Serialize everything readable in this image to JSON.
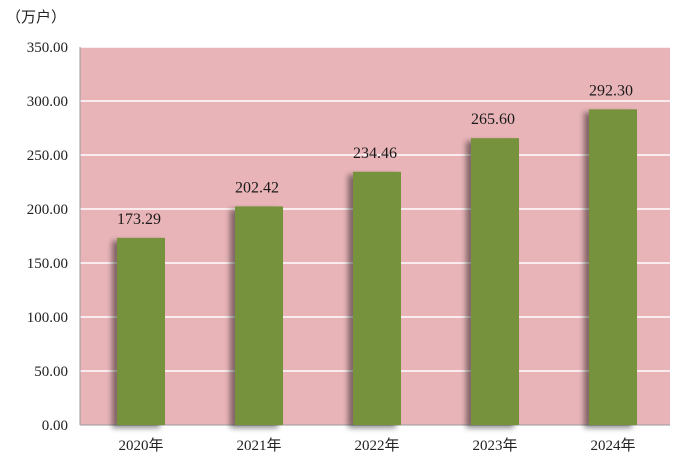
{
  "chart_data": {
    "type": "bar",
    "title": "",
    "xlabel": "",
    "ylabel": "",
    "unit": "（万户）",
    "categories": [
      "2020年",
      "2021年",
      "2022年",
      "2023年",
      "2024年"
    ],
    "values": [
      173.29,
      202.42,
      234.46,
      265.6,
      292.3
    ],
    "value_labels": [
      "173.29",
      "202.42",
      "234.46",
      "265.60",
      "292.30"
    ],
    "ylim": [
      0,
      350
    ],
    "yticks": [
      "0.00",
      "50.00",
      "100.00",
      "150.00",
      "200.00",
      "250.00",
      "300.00",
      "350.00"
    ],
    "grid": true,
    "legend": "none",
    "colors": {
      "plot_background": "#e8b4b8",
      "bar": "#76923c",
      "gridline": "#ffffff",
      "axis": "#9a9a9a",
      "text": "#222222"
    }
  }
}
